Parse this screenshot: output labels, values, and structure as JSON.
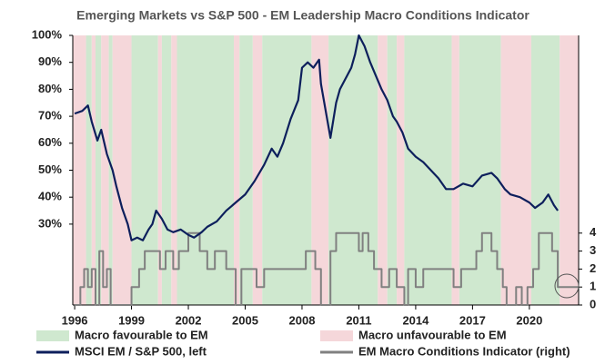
{
  "chart_data": {
    "type": "line",
    "title": "Emerging Markets vs S&P 500 - EM Leadership Macro Conditions Indicator",
    "xlim": [
      1995.9,
      2022.6
    ],
    "xticks": [
      1996,
      1999,
      2002,
      2005,
      2008,
      2011,
      2014,
      2017,
      2020
    ],
    "ylim": [
      0,
      100
    ],
    "yticks": [
      {
        "value": 30,
        "label": "30%"
      },
      {
        "value": 40,
        "label": "40%"
      },
      {
        "value": 50,
        "label": "50%"
      },
      {
        "value": 60,
        "label": "60%"
      },
      {
        "value": 70,
        "label": "70%"
      },
      {
        "value": 80,
        "label": "80%"
      },
      {
        "value": 90,
        "label": "90%"
      },
      {
        "value": 100,
        "label": "100%"
      }
    ],
    "y2lim": [
      0,
      15
    ],
    "y2ticks": [
      0,
      1,
      2,
      3,
      4
    ],
    "shading": {
      "labels": [
        "Macro favourable to EM",
        "Macro unfavourable to EM"
      ],
      "colors": [
        "#cfe8cf",
        "#f5d7da"
      ],
      "starts": [
        1995.9,
        1996.6,
        1996.9,
        1997.1,
        1997.4,
        1997.8,
        1998.0,
        1999.0,
        2000.4,
        2000.6,
        2001.1,
        2001.4,
        2004.4,
        2004.7,
        2005.4,
        2005.9,
        2008.5,
        2009.4,
        2012.0,
        2012.5,
        2013.0,
        2013.4,
        2015.9,
        2016.3,
        2018.5,
        2020.1,
        2021.6
      ],
      "favourable": [
        false,
        true,
        false,
        true,
        false,
        true,
        false,
        true,
        false,
        true,
        false,
        true,
        false,
        true,
        false,
        true,
        false,
        true,
        false,
        true,
        false,
        true,
        false,
        true,
        false,
        true,
        false
      ]
    },
    "series": [
      {
        "name": "MSCI EM / S&P 500, left",
        "color": "#0d1f5c",
        "x": [
          1996.0,
          1996.4,
          1996.7,
          1996.9,
          1997.2,
          1997.4,
          1997.7,
          1998.0,
          1998.2,
          1998.5,
          1998.8,
          1999.0,
          1999.3,
          1999.6,
          1999.9,
          2000.1,
          2000.3,
          2000.6,
          2000.9,
          2001.2,
          2001.6,
          2002.0,
          2002.3,
          2002.7,
          2003.0,
          2003.5,
          2004.0,
          2004.5,
          2005.0,
          2005.5,
          2006.0,
          2006.4,
          2006.7,
          2007.0,
          2007.4,
          2007.8,
          2008.0,
          2008.3,
          2008.6,
          2008.9,
          2009.0,
          2009.3,
          2009.5,
          2009.8,
          2010.0,
          2010.3,
          2010.6,
          2010.8,
          2011.0,
          2011.3,
          2011.6,
          2011.9,
          2012.2,
          2012.5,
          2012.8,
          2013.0,
          2013.3,
          2013.6,
          2014.0,
          2014.4,
          2014.8,
          2015.2,
          2015.6,
          2016.0,
          2016.5,
          2017.0,
          2017.5,
          2018.0,
          2018.3,
          2018.7,
          2019.0,
          2019.5,
          2020.0,
          2020.3,
          2020.7,
          2021.0,
          2021.3,
          2021.5
        ],
        "values": [
          71,
          72,
          74,
          68,
          61,
          65,
          56,
          50,
          44,
          36,
          30,
          24,
          25,
          24,
          28,
          30,
          35,
          32,
          28,
          27,
          28,
          26,
          25,
          27,
          29,
          31,
          35,
          38,
          41,
          46,
          52,
          58,
          55,
          60,
          69,
          76,
          88,
          90,
          88,
          91,
          82,
          70,
          62,
          75,
          80,
          84,
          88,
          93,
          100,
          96,
          90,
          85,
          80,
          76,
          70,
          68,
          64,
          58,
          55,
          53,
          50,
          47,
          43,
          43,
          45,
          44,
          48,
          49,
          47,
          43,
          41,
          40,
          38,
          36,
          38,
          41,
          37,
          35
        ]
      },
      {
        "name": "EM Macro Conditions Indicator (right)",
        "color": "#808080",
        "axis": "y2",
        "step": true,
        "x": [
          1996.0,
          1996.3,
          1996.5,
          1996.7,
          1996.9,
          1997.1,
          1997.3,
          1997.5,
          1997.7,
          1997.9,
          1999.0,
          1999.4,
          1999.7,
          2000.5,
          2000.8,
          2001.2,
          2001.5,
          2002.0,
          2002.6,
          2003.0,
          2003.4,
          2004.0,
          2004.5,
          2004.8,
          2005.6,
          2006.0,
          2008.2,
          2008.7,
          2009.0,
          2009.5,
          2009.8,
          2011.0,
          2011.2,
          2011.5,
          2011.8,
          2012.2,
          2012.6,
          2013.0,
          2013.4,
          2013.6,
          2014.0,
          2014.4,
          2016.0,
          2016.4,
          2017.2,
          2017.5,
          2018.0,
          2018.3,
          2018.6,
          2018.8,
          2019.3,
          2019.6,
          2019.9,
          2020.2,
          2020.5,
          2021.2,
          2021.5
        ],
        "values": [
          0,
          1,
          2,
          1,
          2,
          0,
          3,
          1,
          2,
          0,
          1,
          2,
          3,
          2,
          3,
          2,
          3,
          4,
          3,
          2,
          3,
          2,
          0,
          2,
          1,
          2,
          3,
          2,
          0,
          3,
          4,
          3,
          4,
          3,
          2,
          1,
          2,
          1,
          0,
          2,
          1,
          2,
          1,
          2,
          3,
          4,
          3,
          2,
          1,
          0,
          1,
          0,
          1,
          2,
          4,
          3,
          1
        ]
      }
    ]
  }
}
